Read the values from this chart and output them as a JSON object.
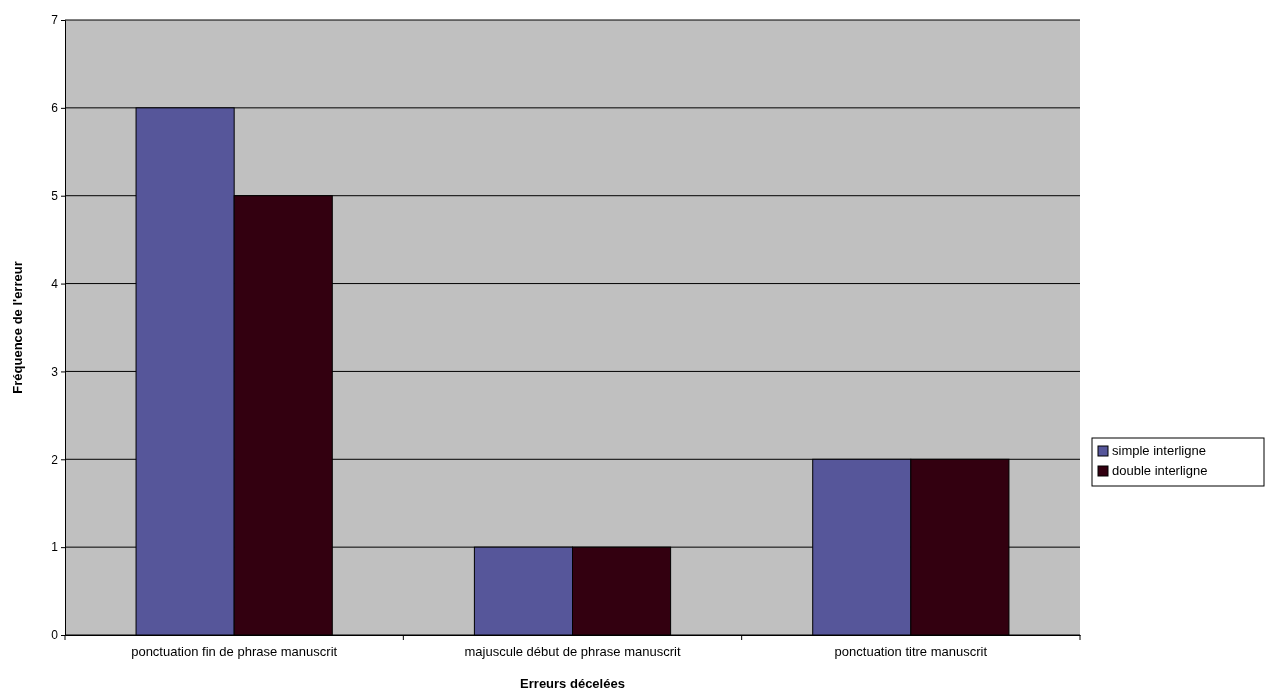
{
  "chart_data": {
    "type": "bar",
    "xlabel": "Erreurs décelées",
    "ylabel": "Fréquence de l'erreur",
    "categories": [
      "ponctuation fin de phrase manuscrit",
      "majuscule début de phrase manuscrit",
      "ponctuation titre manuscrit"
    ],
    "series": [
      {
        "name": "simple interligne",
        "color": "#56569a",
        "values": [
          6,
          1,
          2
        ]
      },
      {
        "name": "double interligne",
        "color": "#330010",
        "values": [
          5,
          1,
          2
        ]
      }
    ],
    "ylim": [
      0,
      7
    ],
    "yticks": [
      0,
      1,
      2,
      3,
      4,
      5,
      6,
      7
    ],
    "grid": "y",
    "legend": "right"
  }
}
